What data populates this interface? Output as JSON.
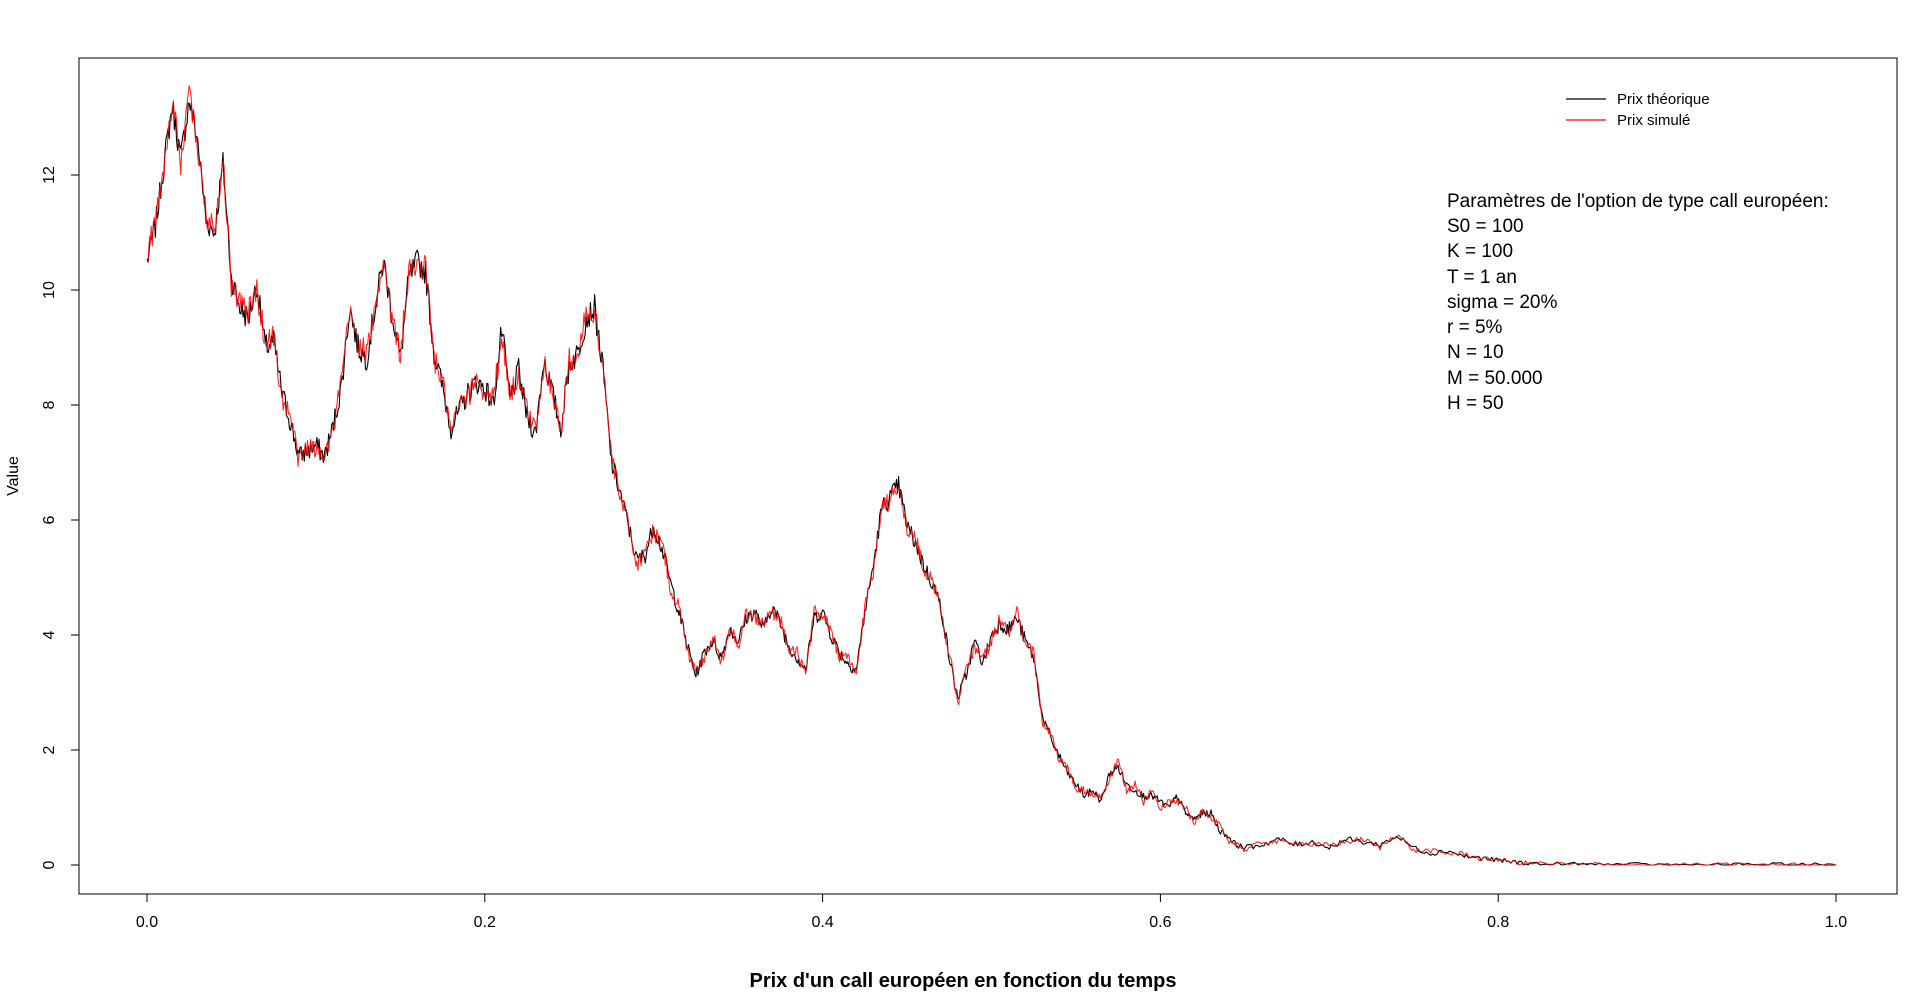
{
  "chart_data": {
    "type": "line",
    "title": "Prix d'un call européen en fonction du temps",
    "xlabel": "",
    "ylabel": "Value",
    "xlim": [
      0,
      1
    ],
    "ylim": [
      0,
      13.5
    ],
    "x_ticks": [
      "0.0",
      "0.2",
      "0.4",
      "0.6",
      "0.8",
      "1.0"
    ],
    "y_ticks": [
      "0",
      "2",
      "4",
      "6",
      "8",
      "10",
      "12"
    ],
    "legend_position": "top-right",
    "grid": false,
    "series": [
      {
        "name": "Prix théorique",
        "color": "#000000",
        "x": [
          0.0,
          0.005,
          0.01,
          0.015,
          0.02,
          0.025,
          0.03,
          0.035,
          0.04,
          0.045,
          0.05,
          0.055,
          0.06,
          0.065,
          0.07,
          0.075,
          0.08,
          0.085,
          0.09,
          0.095,
          0.1,
          0.105,
          0.11,
          0.115,
          0.12,
          0.125,
          0.13,
          0.135,
          0.14,
          0.145,
          0.15,
          0.155,
          0.16,
          0.165,
          0.17,
          0.175,
          0.18,
          0.185,
          0.19,
          0.195,
          0.2,
          0.205,
          0.21,
          0.215,
          0.22,
          0.225,
          0.23,
          0.235,
          0.24,
          0.245,
          0.25,
          0.255,
          0.26,
          0.265,
          0.27,
          0.275,
          0.28,
          0.285,
          0.29,
          0.295,
          0.3,
          0.305,
          0.31,
          0.315,
          0.32,
          0.325,
          0.33,
          0.335,
          0.34,
          0.345,
          0.35,
          0.355,
          0.36,
          0.365,
          0.37,
          0.375,
          0.38,
          0.385,
          0.39,
          0.395,
          0.4,
          0.405,
          0.41,
          0.415,
          0.42,
          0.425,
          0.43,
          0.435,
          0.44,
          0.445,
          0.45,
          0.455,
          0.46,
          0.465,
          0.47,
          0.475,
          0.48,
          0.485,
          0.49,
          0.495,
          0.5,
          0.505,
          0.51,
          0.515,
          0.52,
          0.525,
          0.53,
          0.535,
          0.54,
          0.545,
          0.55,
          0.555,
          0.56,
          0.565,
          0.57,
          0.575,
          0.58,
          0.585,
          0.59,
          0.595,
          0.6,
          0.605,
          0.61,
          0.615,
          0.62,
          0.625,
          0.63,
          0.635,
          0.64,
          0.645,
          0.65,
          0.66,
          0.67,
          0.68,
          0.69,
          0.7,
          0.71,
          0.72,
          0.73,
          0.74,
          0.75,
          0.76,
          0.77,
          0.78,
          0.79,
          0.8,
          0.81,
          0.82,
          0.84,
          0.86,
          0.88,
          0.9,
          0.92,
          0.94,
          0.96,
          0.98,
          1.0
        ],
        "y": [
          10.5,
          11.1,
          12.2,
          13.2,
          12.3,
          13.3,
          12.6,
          11.2,
          11.0,
          12.2,
          10.2,
          9.7,
          9.5,
          10.1,
          9.0,
          9.1,
          8.2,
          7.7,
          7.1,
          7.2,
          7.3,
          7.1,
          7.6,
          8.3,
          9.7,
          9.0,
          8.8,
          9.7,
          10.5,
          9.6,
          8.8,
          10.2,
          10.5,
          10.3,
          8.9,
          8.3,
          7.6,
          7.9,
          8.2,
          8.4,
          8.3,
          8.0,
          9.3,
          8.1,
          8.6,
          7.8,
          7.5,
          8.8,
          8.2,
          7.6,
          8.7,
          8.9,
          9.5,
          9.7,
          8.6,
          7.0,
          6.5,
          5.9,
          5.3,
          5.4,
          5.9,
          5.5,
          4.9,
          4.4,
          3.8,
          3.3,
          3.7,
          3.9,
          3.6,
          4.1,
          3.9,
          4.3,
          4.4,
          4.1,
          4.5,
          4.2,
          3.8,
          3.6,
          3.4,
          4.3,
          4.4,
          4.0,
          3.7,
          3.5,
          3.4,
          4.4,
          5.2,
          6.2,
          6.4,
          6.6,
          5.9,
          5.6,
          5.2,
          4.9,
          4.5,
          3.6,
          2.9,
          3.3,
          3.9,
          3.5,
          4.0,
          4.2,
          4.1,
          4.3,
          3.9,
          3.6,
          2.6,
          2.2,
          1.9,
          1.6,
          1.4,
          1.2,
          1.3,
          1.1,
          1.6,
          1.7,
          1.4,
          1.3,
          1.2,
          1.2,
          1.1,
          1.0,
          1.2,
          0.9,
          0.8,
          0.9,
          0.9,
          0.6,
          0.5,
          0.35,
          0.3,
          0.35,
          0.45,
          0.35,
          0.4,
          0.3,
          0.45,
          0.4,
          0.35,
          0.5,
          0.3,
          0.2,
          0.25,
          0.15,
          0.12,
          0.08,
          0.05,
          0.02,
          0.01,
          0.01,
          0.0,
          0.0,
          0.0,
          0.0,
          0.0,
          0.0,
          0.0
        ]
      },
      {
        "name": "Prix simulé",
        "color": "#ff0000",
        "x": [
          0.0,
          0.005,
          0.01,
          0.015,
          0.02,
          0.025,
          0.03,
          0.035,
          0.04,
          0.045,
          0.05,
          0.055,
          0.06,
          0.065,
          0.07,
          0.075,
          0.08,
          0.085,
          0.09,
          0.095,
          0.1,
          0.105,
          0.11,
          0.115,
          0.12,
          0.125,
          0.13,
          0.135,
          0.14,
          0.145,
          0.15,
          0.155,
          0.16,
          0.165,
          0.17,
          0.175,
          0.18,
          0.185,
          0.19,
          0.195,
          0.2,
          0.205,
          0.21,
          0.215,
          0.22,
          0.225,
          0.23,
          0.235,
          0.24,
          0.245,
          0.25,
          0.255,
          0.26,
          0.265,
          0.27,
          0.275,
          0.28,
          0.285,
          0.29,
          0.295,
          0.3,
          0.305,
          0.31,
          0.315,
          0.32,
          0.325,
          0.33,
          0.335,
          0.34,
          0.345,
          0.35,
          0.355,
          0.36,
          0.365,
          0.37,
          0.375,
          0.38,
          0.385,
          0.39,
          0.395,
          0.4,
          0.405,
          0.41,
          0.415,
          0.42,
          0.425,
          0.43,
          0.435,
          0.44,
          0.445,
          0.45,
          0.455,
          0.46,
          0.465,
          0.47,
          0.475,
          0.48,
          0.485,
          0.49,
          0.495,
          0.5,
          0.505,
          0.51,
          0.515,
          0.52,
          0.525,
          0.53,
          0.535,
          0.54,
          0.545,
          0.55,
          0.555,
          0.56,
          0.565,
          0.57,
          0.575,
          0.58,
          0.585,
          0.59,
          0.595,
          0.6,
          0.605,
          0.61,
          0.615,
          0.62,
          0.625,
          0.63,
          0.635,
          0.64,
          0.645,
          0.65,
          0.66,
          0.67,
          0.68,
          0.69,
          0.7,
          0.71,
          0.72,
          0.73,
          0.74,
          0.75,
          0.76,
          0.77,
          0.78,
          0.79,
          0.8,
          0.81,
          0.82,
          0.84,
          0.86,
          0.88,
          0.9,
          0.92,
          0.94,
          0.96,
          0.98,
          1.0
        ],
        "y": [
          10.6,
          11.2,
          12.1,
          13.3,
          12.2,
          13.4,
          12.5,
          11.3,
          11.1,
          12.3,
          10.1,
          9.8,
          9.6,
          10.0,
          9.1,
          9.2,
          8.1,
          7.8,
          7.0,
          7.3,
          7.2,
          7.2,
          7.5,
          8.4,
          9.6,
          9.1,
          8.9,
          9.6,
          10.6,
          9.5,
          8.9,
          10.3,
          10.4,
          10.4,
          8.8,
          8.4,
          7.5,
          8.0,
          8.1,
          8.5,
          8.2,
          8.1,
          9.2,
          8.2,
          8.5,
          7.9,
          7.6,
          8.7,
          8.3,
          7.5,
          8.8,
          8.8,
          9.6,
          9.6,
          8.7,
          7.1,
          6.4,
          6.0,
          5.2,
          5.5,
          5.8,
          5.6,
          4.8,
          4.5,
          3.7,
          3.4,
          3.6,
          4.0,
          3.5,
          4.2,
          3.8,
          4.4,
          4.3,
          4.2,
          4.4,
          4.3,
          3.7,
          3.7,
          3.3,
          4.4,
          4.3,
          4.1,
          3.6,
          3.6,
          3.3,
          4.5,
          5.1,
          6.3,
          6.3,
          6.7,
          5.8,
          5.7,
          5.1,
          5.0,
          4.4,
          3.7,
          2.8,
          3.4,
          3.8,
          3.6,
          3.9,
          4.3,
          4.0,
          4.4,
          3.8,
          3.7,
          2.5,
          2.3,
          1.8,
          1.7,
          1.3,
          1.3,
          1.2,
          1.2,
          1.5,
          1.8,
          1.3,
          1.4,
          1.1,
          1.3,
          1.0,
          1.1,
          1.1,
          1.0,
          0.7,
          1.0,
          0.8,
          0.7,
          0.4,
          0.4,
          0.25,
          0.4,
          0.4,
          0.4,
          0.35,
          0.35,
          0.4,
          0.45,
          0.3,
          0.55,
          0.25,
          0.25,
          0.2,
          0.2,
          0.1,
          0.1,
          0.04,
          0.03,
          0.01,
          0.01,
          0.0,
          0.0,
          0.0,
          0.0,
          0.0,
          0.0,
          0.0
        ]
      }
    ],
    "annotation": {
      "lines": [
        "Paramètres de l'option de type call européen:",
        "S0 = 100",
        "K = 100",
        "T = 1 an",
        "sigma = 20%",
        "r = 5%",
        "N = 10",
        "M = 50.000",
        "H = 50"
      ]
    }
  }
}
